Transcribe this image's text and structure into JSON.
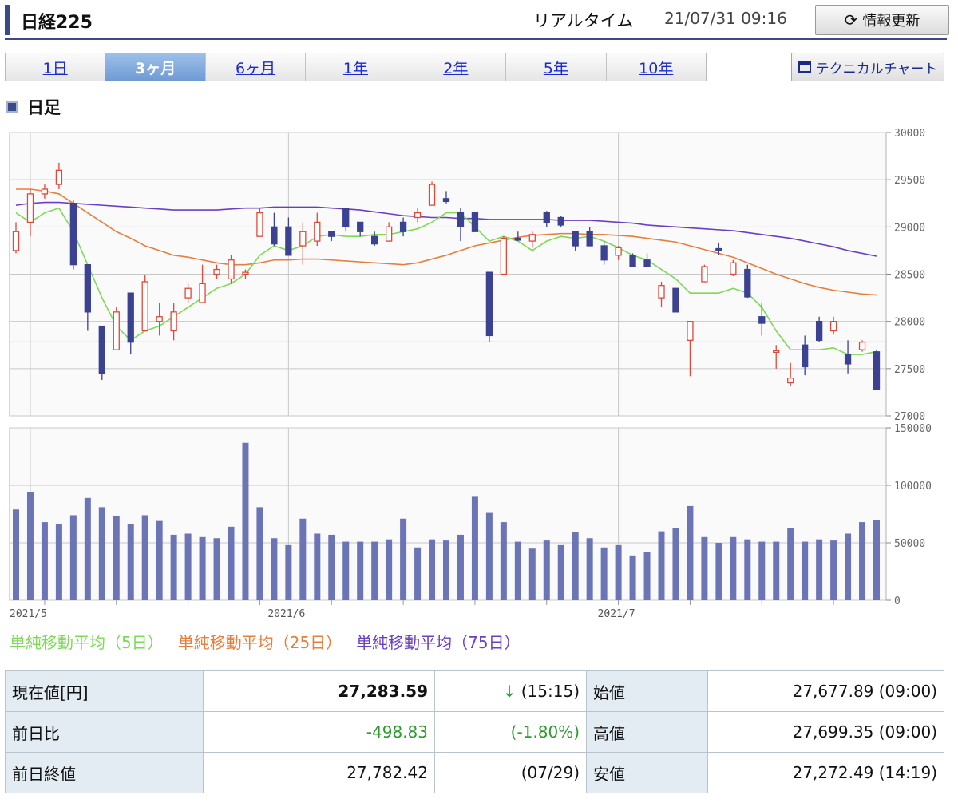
{
  "header": {
    "title": "日経225",
    "realtime_label": "リアルタイム",
    "timestamp": "21/07/31 09:16",
    "refresh_label": "情報更新",
    "refresh_icon": "refresh-icon"
  },
  "tabs": [
    {
      "label": "1日",
      "active": false
    },
    {
      "label": "3ヶ月",
      "active": true
    },
    {
      "label": "6ヶ月",
      "active": false
    },
    {
      "label": "1年",
      "active": false
    },
    {
      "label": "2年",
      "active": false
    },
    {
      "label": "5年",
      "active": false
    },
    {
      "label": "10年",
      "active": false
    }
  ],
  "technical_button": {
    "label": "テクニカルチャート",
    "icon": "window-icon"
  },
  "section_label": "日足",
  "legend": [
    {
      "label": "単純移動平均（5日）",
      "color": "#7ed957"
    },
    {
      "label": "単純移動平均（25日）",
      "color": "#e57f3c"
    },
    {
      "label": "単純移動平均（75日）",
      "color": "#6a3fc4"
    }
  ],
  "chart_data": {
    "type": "candlestick",
    "price_axis": {
      "ylim": [
        27000,
        30000
      ],
      "ticks": [
        "30000",
        "29500",
        "29000",
        "28500",
        "28000",
        "27500",
        "27000"
      ]
    },
    "volume_axis": {
      "ylim": [
        0,
        150000
      ],
      "ticks": [
        "150000",
        "100000",
        "50000",
        "0"
      ]
    },
    "x_labels": [
      {
        "index": 0,
        "label": "2021/5"
      },
      {
        "index": 19,
        "label": "2021/6"
      },
      {
        "index": 42,
        "label": "2021/7"
      }
    ],
    "reference_line": 27782.42,
    "colors": {
      "up": "#e0483a",
      "down": "#3a4291",
      "volume": "#6b75b6",
      "ref_line": "#e98a8a",
      "grid": "#c8c8c8"
    },
    "candles": [
      {
        "o": 28750,
        "h": 29050,
        "l": 28720,
        "c": 28950
      },
      {
        "o": 29050,
        "h": 29400,
        "l": 28900,
        "c": 29350
      },
      {
        "o": 29350,
        "h": 29450,
        "l": 29300,
        "c": 29400
      },
      {
        "o": 29450,
        "h": 29680,
        "l": 29400,
        "c": 29600
      },
      {
        "o": 29250,
        "h": 29280,
        "l": 28550,
        "c": 28600
      },
      {
        "o": 28600,
        "h": 28600,
        "l": 27900,
        "c": 28100
      },
      {
        "o": 27950,
        "h": 27950,
        "l": 27380,
        "c": 27450
      },
      {
        "o": 27700,
        "h": 28150,
        "l": 27700,
        "c": 28100
      },
      {
        "o": 28300,
        "h": 28300,
        "l": 27650,
        "c": 27780
      },
      {
        "o": 27900,
        "h": 28490,
        "l": 27900,
        "c": 28420
      },
      {
        "o": 28000,
        "h": 28200,
        "l": 27850,
        "c": 28050
      },
      {
        "o": 27900,
        "h": 28200,
        "l": 27800,
        "c": 28100
      },
      {
        "o": 28250,
        "h": 28400,
        "l": 28200,
        "c": 28350
      },
      {
        "o": 28200,
        "h": 28600,
        "l": 28200,
        "c": 28400
      },
      {
        "o": 28500,
        "h": 28600,
        "l": 28450,
        "c": 28550
      },
      {
        "o": 28450,
        "h": 28700,
        "l": 28400,
        "c": 28650
      },
      {
        "o": 28500,
        "h": 28550,
        "l": 28450,
        "c": 28520
      },
      {
        "o": 28900,
        "h": 29200,
        "l": 28900,
        "c": 29150
      },
      {
        "o": 29000,
        "h": 29150,
        "l": 28800,
        "c": 28820
      },
      {
        "o": 29000,
        "h": 29100,
        "l": 28700,
        "c": 28700
      },
      {
        "o": 28800,
        "h": 29050,
        "l": 28600,
        "c": 28950
      },
      {
        "o": 28850,
        "h": 29150,
        "l": 28800,
        "c": 29050
      },
      {
        "o": 28950,
        "h": 28950,
        "l": 28850,
        "c": 28900
      },
      {
        "o": 29200,
        "h": 29200,
        "l": 28950,
        "c": 29000
      },
      {
        "o": 29050,
        "h": 29050,
        "l": 28900,
        "c": 28950
      },
      {
        "o": 28900,
        "h": 28950,
        "l": 28800,
        "c": 28820
      },
      {
        "o": 28850,
        "h": 29050,
        "l": 28850,
        "c": 29000
      },
      {
        "o": 29050,
        "h": 29100,
        "l": 28900,
        "c": 28950
      },
      {
        "o": 29100,
        "h": 29200,
        "l": 29050,
        "c": 29150
      },
      {
        "o": 29230,
        "h": 29480,
        "l": 29230,
        "c": 29450
      },
      {
        "o": 29300,
        "h": 29380,
        "l": 29250,
        "c": 29270
      },
      {
        "o": 29150,
        "h": 29200,
        "l": 28850,
        "c": 29000
      },
      {
        "o": 29150,
        "h": 29150,
        "l": 28950,
        "c": 28950
      },
      {
        "o": 28520,
        "h": 28520,
        "l": 27780,
        "c": 27850
      },
      {
        "o": 28500,
        "h": 28900,
        "l": 28500,
        "c": 28880
      },
      {
        "o": 28880,
        "h": 28950,
        "l": 28850,
        "c": 28860
      },
      {
        "o": 28850,
        "h": 28950,
        "l": 28780,
        "c": 28920
      },
      {
        "o": 29150,
        "h": 29170,
        "l": 29000,
        "c": 29050
      },
      {
        "o": 29100,
        "h": 29120,
        "l": 29000,
        "c": 29020
      },
      {
        "o": 28950,
        "h": 28950,
        "l": 28750,
        "c": 28800
      },
      {
        "o": 28950,
        "h": 29000,
        "l": 28800,
        "c": 28800
      },
      {
        "o": 28800,
        "h": 28850,
        "l": 28600,
        "c": 28650
      },
      {
        "o": 28700,
        "h": 28800,
        "l": 28650,
        "c": 28780
      },
      {
        "o": 28700,
        "h": 28720,
        "l": 28580,
        "c": 28580
      },
      {
        "o": 28650,
        "h": 28720,
        "l": 28580,
        "c": 28580
      },
      {
        "o": 28250,
        "h": 28420,
        "l": 28150,
        "c": 28380
      },
      {
        "o": 28350,
        "h": 28350,
        "l": 28100,
        "c": 28100
      },
      {
        "o": 27800,
        "h": 28000,
        "l": 27420,
        "c": 28000
      },
      {
        "o": 28420,
        "h": 28600,
        "l": 28420,
        "c": 28580
      },
      {
        "o": 28770,
        "h": 28830,
        "l": 28700,
        "c": 28750
      },
      {
        "o": 28500,
        "h": 28650,
        "l": 28480,
        "c": 28620
      },
      {
        "o": 28550,
        "h": 28600,
        "l": 28250,
        "c": 28260
      },
      {
        "o": 28050,
        "h": 28200,
        "l": 27850,
        "c": 27980
      },
      {
        "o": 27680,
        "h": 27750,
        "l": 27500,
        "c": 27690
      },
      {
        "o": 27350,
        "h": 27560,
        "l": 27320,
        "c": 27400
      },
      {
        "o": 27750,
        "h": 27850,
        "l": 27430,
        "c": 27520
      },
      {
        "o": 28000,
        "h": 28050,
        "l": 27780,
        "c": 27800
      },
      {
        "o": 27900,
        "h": 28050,
        "l": 27860,
        "c": 28000
      },
      {
        "o": 27650,
        "h": 27800,
        "l": 27450,
        "c": 27550
      },
      {
        "o": 27700,
        "h": 27800,
        "l": 27680,
        "c": 27780
      },
      {
        "o": 27678,
        "h": 27699,
        "l": 27272,
        "c": 27284
      }
    ],
    "volume": [
      79000,
      94000,
      68000,
      66000,
      74000,
      89000,
      81000,
      73000,
      66000,
      74000,
      69000,
      57000,
      58000,
      55000,
      54000,
      64000,
      137000,
      81000,
      54000,
      48000,
      71000,
      58000,
      57000,
      51000,
      51000,
      51000,
      53000,
      71000,
      46000,
      53000,
      52000,
      57000,
      90000,
      76000,
      68000,
      51000,
      45000,
      52000,
      48000,
      59000,
      54000,
      46000,
      48000,
      39000,
      42000,
      60000,
      63000,
      82000,
      55000,
      50000,
      55000,
      53000,
      51000,
      51000,
      63000,
      51000,
      53000,
      52000,
      58000,
      68000,
      70000
    ],
    "ma5": [
      29150,
      29050,
      29150,
      29200,
      28950,
      28600,
      28250,
      27950,
      27800,
      27900,
      27950,
      28050,
      28150,
      28250,
      28350,
      28400,
      28500,
      28700,
      28800,
      28750,
      28800,
      28900,
      28920,
      28900,
      28900,
      28920,
      28920,
      28950,
      28980,
      29050,
      29150,
      29150,
      29000,
      28850,
      28900,
      28850,
      28750,
      28850,
      28900,
      28880,
      28900,
      28850,
      28780,
      28700,
      28650,
      28550,
      28450,
      28300,
      28300,
      28300,
      28350,
      28300,
      28150,
      27900,
      27700,
      27700,
      27700,
      27720,
      27650,
      27650,
      27680
    ],
    "ma25": [
      29400,
      29400,
      29380,
      29350,
      29250,
      29150,
      29050,
      28950,
      28880,
      28800,
      28750,
      28700,
      28680,
      28650,
      28620,
      28600,
      28600,
      28620,
      28650,
      28650,
      28660,
      28660,
      28650,
      28640,
      28630,
      28620,
      28610,
      28600,
      28620,
      28660,
      28700,
      28750,
      28800,
      28830,
      28860,
      28890,
      28910,
      28920,
      28930,
      28930,
      28920,
      28920,
      28910,
      28900,
      28880,
      28860,
      28840,
      28800,
      28760,
      28720,
      28680,
      28620,
      28560,
      28500,
      28450,
      28400,
      28360,
      28330,
      28310,
      28290,
      28280
    ],
    "ma75": [
      29230,
      29250,
      29260,
      29260,
      29250,
      29240,
      29230,
      29220,
      29210,
      29200,
      29190,
      29180,
      29180,
      29180,
      29180,
      29190,
      29200,
      29200,
      29210,
      29210,
      29210,
      29210,
      29200,
      29190,
      29180,
      29160,
      29140,
      29120,
      29110,
      29100,
      29100,
      29090,
      29090,
      29080,
      29080,
      29080,
      29080,
      29080,
      29070,
      29070,
      29070,
      29060,
      29050,
      29040,
      29020,
      29010,
      29000,
      28990,
      28980,
      28970,
      28960,
      28940,
      28920,
      28900,
      28880,
      28850,
      28820,
      28790,
      28750,
      28720,
      28690
    ]
  },
  "info_table": {
    "current_label": "現在値[円]",
    "current_value": "27,283.59",
    "current_arrow": "↓",
    "current_time": "(15:15)",
    "change_label": "前日比",
    "change_value": "-498.83",
    "change_pct": "(-1.80%)",
    "prev_label": "前日終値",
    "prev_value": "27,782.42",
    "prev_date": "(07/29)",
    "open_label": "始値",
    "open_value": "27,677.89 (09:00)",
    "high_label": "高値",
    "high_value": "27,699.35 (09:00)",
    "low_label": "安値",
    "low_value": "27,272.49 (14:19)"
  }
}
